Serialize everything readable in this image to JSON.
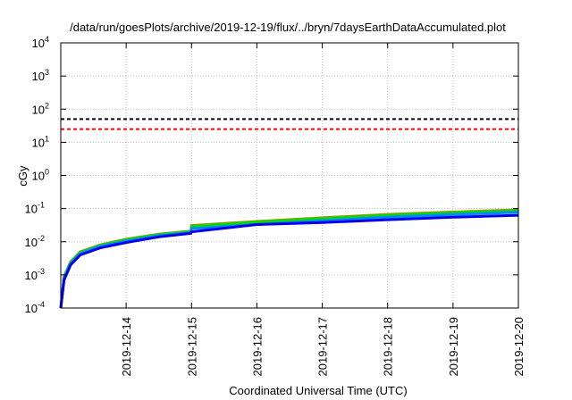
{
  "chart_data": {
    "type": "line",
    "title": "/data/run/goesPlots/archive/2019-12-19/flux/../bryn/7daysEarthDataAccumulated.plot",
    "xlabel": "Coordinated Universal Time (UTC)",
    "ylabel": "cGy",
    "yscale": "log",
    "ylim": [
      0.0001,
      10000
    ],
    "xlim_days": [
      0,
      7
    ],
    "x_unit": "days since 2019-12-13 00:00 UTC",
    "grid": true,
    "y_ticks": [
      {
        "base": "10",
        "exp": "-4",
        "value": 0.0001
      },
      {
        "base": "10",
        "exp": "-3",
        "value": 0.001
      },
      {
        "base": "10",
        "exp": "-2",
        "value": 0.01
      },
      {
        "base": "10",
        "exp": "-1",
        "value": 0.1
      },
      {
        "base": "10",
        "exp": "0",
        "value": 1
      },
      {
        "base": "10",
        "exp": "1",
        "value": 10
      },
      {
        "base": "10",
        "exp": "2",
        "value": 100
      },
      {
        "base": "10",
        "exp": "3",
        "value": 1000
      },
      {
        "base": "10",
        "exp": "4",
        "value": 10000
      }
    ],
    "x_ticks": [
      {
        "label": "2019-12-14",
        "value": 1
      },
      {
        "label": "2019-12-15",
        "value": 2
      },
      {
        "label": "2019-12-16",
        "value": 3
      },
      {
        "label": "2019-12-17",
        "value": 4
      },
      {
        "label": "2019-12-18",
        "value": 5
      },
      {
        "label": "2019-12-19",
        "value": 6
      },
      {
        "label": "2019-12-20",
        "value": 7
      }
    ],
    "thresholds": [
      {
        "value": 50,
        "color": "#000000"
      },
      {
        "value": 25,
        "color": "#ff0000"
      }
    ],
    "series": [
      {
        "color": "#b8860b",
        "x": [
          0,
          0.05,
          0.15,
          0.3,
          0.6,
          1,
          1.5,
          1.99,
          2,
          3,
          4,
          5,
          6,
          7
        ],
        "y": [
          0.0001,
          0.0009,
          0.0025,
          0.005,
          0.008,
          0.012,
          0.017,
          0.021,
          0.031,
          0.041,
          0.053,
          0.067,
          0.079,
          0.092
        ]
      },
      {
        "color": "#00dd00",
        "x": [
          0,
          0.05,
          0.15,
          0.3,
          0.6,
          1,
          1.5,
          1.99,
          2,
          3,
          4,
          5,
          6,
          7
        ],
        "y": [
          0.0001,
          0.0009,
          0.0024,
          0.0048,
          0.0078,
          0.0115,
          0.0165,
          0.0205,
          0.029,
          0.039,
          0.05,
          0.063,
          0.075,
          0.087
        ]
      },
      {
        "color": "#0088ff",
        "x": [
          0,
          0.05,
          0.15,
          0.3,
          0.6,
          1,
          1.5,
          1.99,
          2,
          3,
          4,
          5,
          6,
          7
        ],
        "y": [
          0.0001,
          0.0008,
          0.0022,
          0.0044,
          0.0072,
          0.0105,
          0.0152,
          0.019,
          0.025,
          0.033,
          0.043,
          0.055,
          0.066,
          0.077
        ]
      },
      {
        "color": "#0000ee",
        "x": [
          0,
          0.05,
          0.15,
          0.3,
          0.6,
          1,
          1.5,
          1.99,
          2,
          3,
          4,
          5,
          6,
          7
        ],
        "y": [
          0.0001,
          0.0007,
          0.002,
          0.004,
          0.0065,
          0.0095,
          0.014,
          0.018,
          0.02,
          0.033,
          0.038,
          0.046,
          0.055,
          0.063
        ]
      }
    ]
  }
}
